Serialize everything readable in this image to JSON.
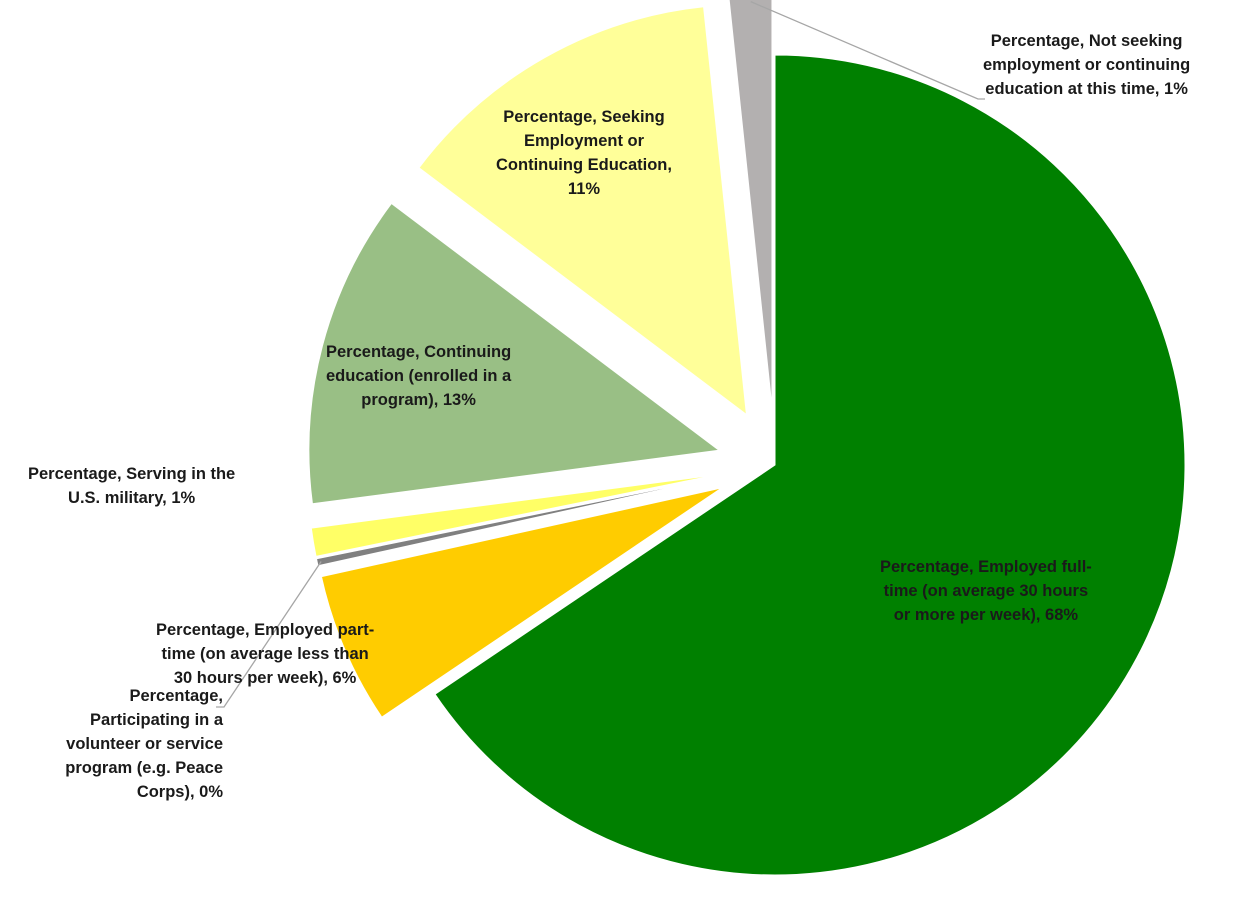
{
  "chart_data": {
    "type": "pie",
    "title": "",
    "slices": [
      {
        "name": "Employed full-time (on average 30 hours or more per week)",
        "value": 68,
        "color": "#008000",
        "label": [
          "Percentage, Employed full-",
          "time (on average 30 hours",
          "or more per week), 68%"
        ]
      },
      {
        "name": "Employed part-time (on average less than 30 hours per week)",
        "value": 6,
        "color": "#FFCC00",
        "label": [
          "Percentage, Employed part-",
          "time (on average less than",
          "30 hours per week), 6%"
        ]
      },
      {
        "name": "Participating in a volunteer or service program (e.g. Peace Corps)",
        "value": 0,
        "color": "#808080",
        "label": [
          "Percentage,",
          "Participating in a",
          "volunteer or service",
          "program (e.g. Peace",
          "Corps), 0%"
        ]
      },
      {
        "name": "Serving in the U.S. military",
        "value": 1,
        "color": "#FFFF66",
        "label": [
          "Percentage, Serving in the",
          "U.S. military, 1%"
        ]
      },
      {
        "name": "Continuing education (enrolled in a program)",
        "value": 13,
        "color": "#99BF85",
        "label": [
          "Percentage, Continuing",
          "education (enrolled in a",
          "program), 13%"
        ]
      },
      {
        "name": "Seeking Employment or Continuing Education",
        "value": 11,
        "color": "#FFFF99",
        "label": [
          "Percentage, Seeking",
          "Employment or",
          "Continuing Education,",
          "11%"
        ]
      },
      {
        "name": "Not seeking employment or continuing education at this time",
        "value": 1,
        "color": "#B3B0B0",
        "label": [
          "Percentage, Not seeking",
          "employment or continuing",
          "education at this time, 1%"
        ]
      }
    ]
  }
}
